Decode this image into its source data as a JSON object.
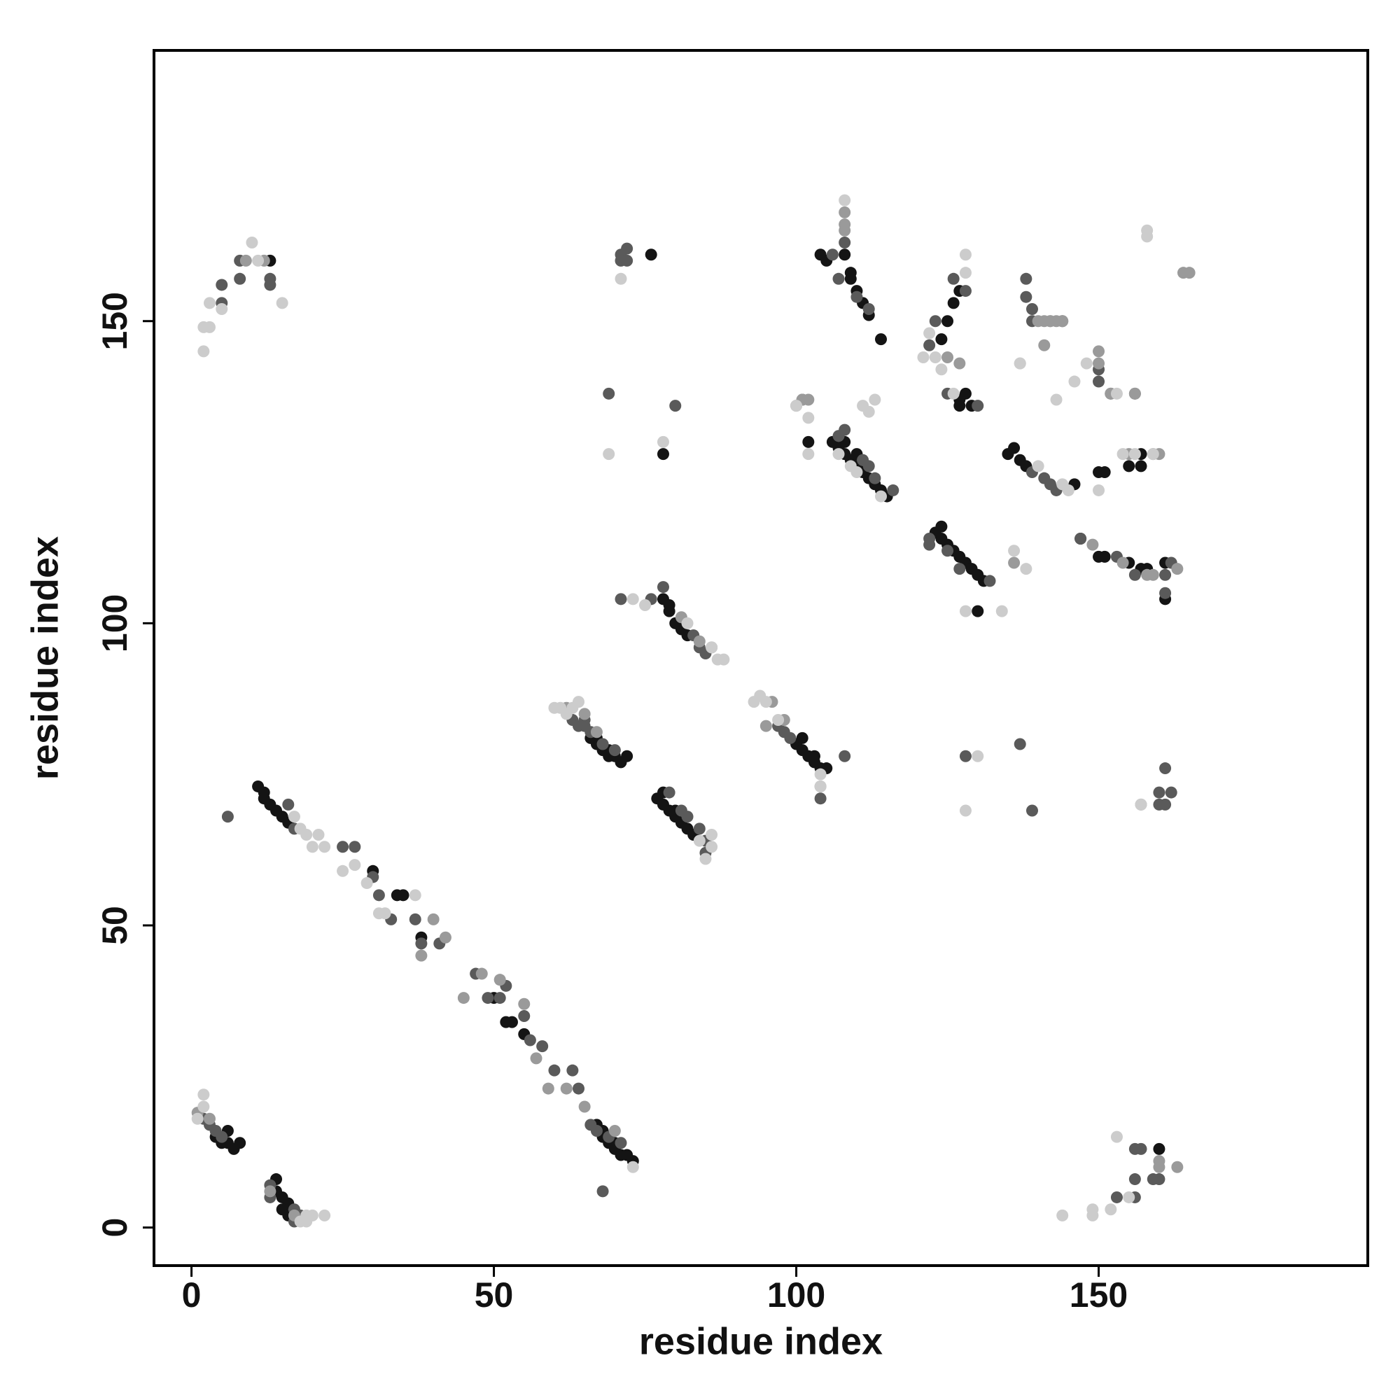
{
  "chart_data": {
    "type": "scatter",
    "xlabel": "residue index",
    "ylabel": "residue index",
    "xlim": [
      -6.2,
      194.5
    ],
    "ylim": [
      -6.3,
      194.8
    ],
    "xticks": [
      0,
      50,
      100,
      150
    ],
    "yticks": [
      0,
      50,
      100,
      150
    ],
    "series": [
      {
        "color": "#141414",
        "x": [
          4,
          5,
          6,
          7,
          8,
          6,
          14,
          14,
          15,
          16,
          15,
          16,
          66,
          67,
          68,
          69,
          70,
          71,
          72,
          67,
          69,
          78,
          79,
          80,
          79,
          81,
          82,
          77,
          78,
          79,
          80,
          81,
          82,
          83,
          78,
          80,
          100,
          101,
          102,
          103,
          104,
          105,
          103,
          101,
          13,
          76,
          78,
          106,
          107,
          108,
          109,
          110,
          111,
          112,
          113,
          114,
          115,
          102,
          108,
          110,
          104,
          108,
          109,
          109,
          110,
          111,
          112,
          114,
          105,
          123,
          124,
          125,
          126,
          127,
          128,
          129,
          130,
          131,
          130,
          124,
          124,
          125,
          126,
          127,
          127,
          128,
          129,
          127,
          135,
          136,
          137,
          138,
          146,
          147,
          150,
          151,
          155,
          157,
          157,
          150,
          151,
          155,
          157,
          158,
          161,
          161,
          160,
          11,
          12,
          13,
          14,
          15,
          16,
          12,
          30,
          34,
          35,
          38,
          50,
          52,
          53,
          55,
          67,
          68,
          69,
          70,
          71,
          72,
          73,
          68,
          70
        ],
        "values": [
          15,
          14,
          16,
          13,
          14,
          14,
          8,
          6,
          5,
          4,
          3,
          2,
          81,
          80,
          79,
          78,
          78,
          77,
          78,
          81,
          79,
          104,
          102,
          100,
          103,
          99,
          98,
          71,
          70,
          69,
          68,
          67,
          66,
          65,
          72,
          69,
          80,
          79,
          78,
          77,
          76,
          76,
          78,
          81,
          160,
          161,
          128,
          130,
          129,
          128,
          127,
          126,
          125,
          124,
          123,
          122,
          121,
          130,
          130,
          128,
          161,
          161,
          158,
          157,
          155,
          153,
          151,
          147,
          160,
          115,
          114,
          113,
          112,
          111,
          110,
          109,
          108,
          107,
          102,
          116,
          147,
          150,
          153,
          155,
          137,
          138,
          136,
          136,
          128,
          129,
          127,
          126,
          123,
          114,
          125,
          125,
          126,
          128,
          126,
          111,
          111,
          110,
          109,
          109,
          110,
          104,
          13,
          73,
          72,
          70,
          69,
          68,
          67,
          71,
          59,
          55,
          55,
          48,
          38,
          34,
          34,
          32,
          17,
          15,
          14,
          13,
          12,
          12,
          11,
          16,
          14
        ]
      },
      {
        "color": "#5a5a5a",
        "x": [
          3,
          4,
          5,
          2,
          13,
          13,
          17,
          18,
          17,
          63,
          64,
          65,
          65,
          66,
          68,
          70,
          76,
          71,
          83,
          84,
          85,
          78,
          79,
          81,
          82,
          84,
          85,
          85,
          97,
          98,
          99,
          104,
          108,
          5,
          5,
          8,
          8,
          13,
          13,
          71,
          72,
          71,
          72,
          69,
          80,
          107,
          108,
          111,
          112,
          116,
          113,
          108,
          107,
          106,
          110,
          112,
          101,
          122,
          125,
          127,
          132,
          122,
          122,
          123,
          126,
          128,
          125,
          130,
          139,
          141,
          142,
          143,
          138,
          138,
          139,
          139,
          144,
          150,
          150,
          152,
          156,
          147,
          153,
          156,
          162,
          161,
          161,
          128,
          137,
          139,
          161,
          160,
          162,
          160,
          161,
          153,
          156,
          156,
          159,
          160,
          157,
          156,
          16,
          17,
          25,
          27,
          30,
          31,
          33,
          37,
          38,
          41,
          47,
          49,
          51,
          55,
          56,
          58,
          60,
          63,
          64,
          66,
          67,
          69,
          71,
          6,
          68,
          52
        ],
        "values": [
          17,
          16,
          15,
          18,
          7,
          5,
          3,
          2,
          1,
          84,
          83,
          83,
          84,
          82,
          80,
          79,
          104,
          104,
          98,
          96,
          95,
          106,
          72,
          69,
          68,
          66,
          64,
          62,
          83,
          82,
          81,
          71,
          78,
          156,
          153,
          160,
          157,
          157,
          156,
          161,
          162,
          160,
          160,
          138,
          136,
          131,
          132,
          127,
          126,
          122,
          124,
          163,
          157,
          161,
          154,
          152,
          137,
          114,
          112,
          109,
          107,
          113,
          146,
          150,
          157,
          155,
          138,
          136,
          125,
          124,
          123,
          122,
          157,
          154,
          152,
          150,
          150,
          142,
          140,
          138,
          138,
          114,
          111,
          108,
          110,
          105,
          108,
          78,
          80,
          69,
          76,
          72,
          72,
          70,
          70,
          5,
          8,
          5,
          8,
          8,
          13,
          13,
          70,
          66,
          63,
          63,
          58,
          55,
          51,
          51,
          47,
          47,
          42,
          38,
          38,
          35,
          31,
          30,
          26,
          26,
          23,
          17,
          16,
          15,
          14,
          68,
          6,
          40
        ]
      },
      {
        "color": "#9a9a9a",
        "x": [
          1,
          3,
          13,
          17,
          62,
          65,
          67,
          81,
          84,
          86,
          95,
          96,
          98,
          104,
          108,
          9,
          12,
          108,
          108,
          101,
          100,
          102,
          125,
          127,
          136,
          141,
          142,
          143,
          140,
          141,
          142,
          144,
          150,
          150,
          152,
          155,
          156,
          159,
          160,
          157,
          164,
          165,
          149,
          154,
          158,
          163,
          159,
          160,
          160,
          163,
          38,
          40,
          42,
          45,
          48,
          51,
          55,
          57,
          59,
          62,
          65,
          70
        ],
        "values": [
          19,
          18,
          6,
          2,
          86,
          85,
          82,
          101,
          97,
          96,
          83,
          87,
          84,
          73,
          166,
          160,
          160,
          168,
          165,
          137,
          136,
          137,
          144,
          143,
          110,
          146,
          150,
          150,
          150,
          150,
          150,
          150,
          145,
          143,
          138,
          128,
          138,
          128,
          128,
          70,
          158,
          158,
          113,
          110,
          108,
          109,
          108,
          10,
          11,
          10,
          45,
          51,
          48,
          38,
          42,
          41,
          37,
          28,
          23,
          23,
          20,
          16
        ]
      },
      {
        "color": "#cccccc",
        "x": [
          1,
          2,
          2,
          18,
          19,
          20,
          22,
          19,
          60,
          61,
          62,
          63,
          64,
          73,
          75,
          82,
          86,
          87,
          88,
          86,
          85,
          84,
          86,
          93,
          94,
          95,
          97,
          104,
          104,
          2,
          2,
          3,
          3,
          5,
          10,
          11,
          15,
          71,
          69,
          78,
          107,
          109,
          110,
          114,
          108,
          111,
          112,
          113,
          102,
          100,
          102,
          128,
          134,
          136,
          137,
          138,
          121,
          123,
          124,
          128,
          128,
          122,
          126,
          140,
          144,
          145,
          137,
          143,
          146,
          148,
          153,
          154,
          156,
          159,
          150,
          158,
          158,
          144,
          149,
          149,
          152,
          153,
          155,
          128,
          130,
          157,
          17,
          18,
          19,
          20,
          21,
          22,
          25,
          27,
          29,
          31,
          32,
          37,
          73
        ],
        "values": [
          18,
          20,
          22,
          1,
          1,
          2,
          2,
          2,
          86,
          86,
          85,
          86,
          87,
          104,
          103,
          100,
          96,
          94,
          94,
          65,
          61,
          64,
          63,
          87,
          88,
          87,
          84,
          75,
          73,
          145,
          149,
          149,
          153,
          152,
          163,
          160,
          153,
          157,
          128,
          130,
          128,
          126,
          125,
          121,
          170,
          136,
          135,
          137,
          128,
          136,
          134,
          102,
          102,
          112,
          143,
          109,
          144,
          144,
          142,
          158,
          161,
          148,
          138,
          126,
          123,
          122,
          143,
          137,
          140,
          143,
          138,
          128,
          128,
          128,
          122,
          165,
          164,
          2,
          2,
          3,
          3,
          15,
          5,
          69,
          78,
          70,
          68,
          66,
          65,
          63,
          65,
          63,
          59,
          60,
          57,
          52,
          52,
          55,
          10
        ]
      }
    ]
  }
}
